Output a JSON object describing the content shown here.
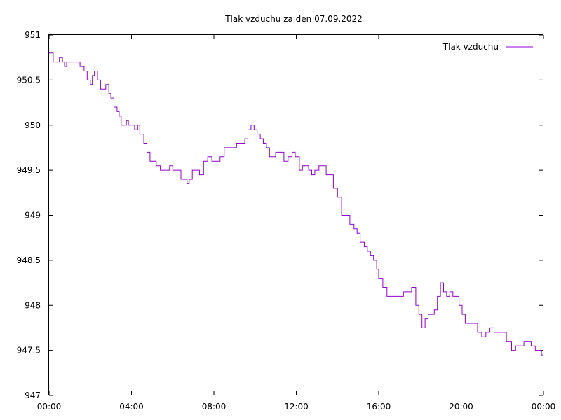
{
  "chart_data": {
    "type": "line",
    "title": "Tlak vzduchu za den 07.09.2022",
    "xlabel": "",
    "ylabel": "",
    "xlim": [
      0,
      24
    ],
    "ylim": [
      947,
      951
    ],
    "x_ticks": [
      "00:00",
      "04:00",
      "08:00",
      "12:00",
      "16:00",
      "20:00",
      "00:00"
    ],
    "y_ticks": [
      "947",
      "947.5",
      "948",
      "948.5",
      "949",
      "949.5",
      "950",
      "950.5",
      "951"
    ],
    "grid": false,
    "legend_position": "top-right",
    "series": [
      {
        "name": "Tlak vzduchu",
        "color": "#9400d3",
        "x": [
          0.0,
          0.1,
          0.2,
          0.35,
          0.5,
          0.65,
          0.75,
          0.85,
          1.0,
          1.2,
          1.5,
          1.7,
          1.85,
          2.0,
          2.1,
          2.2,
          2.35,
          2.5,
          2.6,
          2.75,
          2.9,
          3.0,
          3.15,
          3.3,
          3.4,
          3.5,
          3.65,
          3.75,
          3.85,
          4.0,
          4.15,
          4.3,
          4.4,
          4.6,
          4.75,
          4.9,
          5.05,
          5.2,
          5.4,
          5.55,
          5.7,
          5.85,
          6.0,
          6.2,
          6.4,
          6.55,
          6.7,
          6.8,
          6.95,
          7.1,
          7.3,
          7.5,
          7.7,
          7.9,
          8.1,
          8.3,
          8.5,
          8.7,
          8.9,
          9.1,
          9.3,
          9.5,
          9.65,
          9.8,
          9.95,
          10.1,
          10.25,
          10.4,
          10.55,
          10.7,
          10.85,
          11.0,
          11.2,
          11.4,
          11.6,
          11.8,
          11.95,
          12.15,
          12.3,
          12.45,
          12.6,
          12.75,
          12.9,
          13.1,
          13.3,
          13.45,
          13.6,
          13.8,
          14.0,
          14.2,
          14.4,
          14.6,
          14.8,
          14.95,
          15.1,
          15.3,
          15.45,
          15.6,
          15.75,
          15.9,
          16.0,
          16.2,
          16.4,
          16.5,
          16.6,
          16.8,
          17.0,
          17.2,
          17.4,
          17.6,
          17.8,
          17.95,
          18.1,
          18.25,
          18.4,
          18.55,
          18.7,
          18.85,
          19.0,
          19.15,
          19.3,
          19.45,
          19.6,
          19.75,
          19.9,
          20.05,
          20.2,
          20.4,
          20.6,
          20.8,
          21.0,
          21.2,
          21.4,
          21.6,
          21.8,
          22.0,
          22.2,
          22.45,
          22.65,
          22.85,
          23.05,
          23.2,
          23.4,
          23.6,
          23.75,
          23.9
        ],
        "values": [
          950.8,
          950.8,
          950.7,
          950.7,
          950.75,
          950.7,
          950.65,
          950.7,
          950.7,
          950.7,
          950.65,
          950.6,
          950.5,
          950.45,
          950.55,
          950.6,
          950.5,
          950.4,
          950.4,
          950.45,
          950.35,
          950.3,
          950.2,
          950.15,
          950.1,
          950.0,
          950.0,
          950.05,
          950.0,
          950.0,
          949.95,
          950.0,
          949.9,
          949.8,
          949.7,
          949.6,
          949.6,
          949.55,
          949.5,
          949.5,
          949.5,
          949.55,
          949.5,
          949.5,
          949.4,
          949.4,
          949.35,
          949.4,
          949.5,
          949.5,
          949.45,
          949.6,
          949.65,
          949.6,
          949.6,
          949.65,
          949.75,
          949.75,
          949.75,
          949.8,
          949.8,
          949.85,
          949.95,
          950.0,
          949.95,
          949.9,
          949.85,
          949.8,
          949.75,
          949.65,
          949.65,
          949.7,
          949.7,
          949.6,
          949.65,
          949.7,
          949.65,
          949.5,
          949.55,
          949.55,
          949.5,
          949.45,
          949.5,
          949.55,
          949.55,
          949.45,
          949.45,
          949.3,
          949.2,
          949.0,
          949.0,
          948.9,
          948.85,
          948.8,
          948.7,
          948.65,
          948.6,
          948.55,
          948.5,
          948.4,
          948.3,
          948.2,
          948.1,
          948.1,
          948.1,
          948.1,
          948.1,
          948.15,
          948.15,
          948.2,
          948.0,
          947.9,
          947.75,
          947.85,
          947.9,
          947.9,
          947.95,
          948.1,
          948.25,
          948.15,
          948.1,
          948.15,
          948.1,
          948.1,
          948.0,
          947.9,
          947.8,
          947.8,
          947.8,
          947.7,
          947.65,
          947.7,
          947.75,
          947.7,
          947.7,
          947.7,
          947.6,
          947.5,
          947.55,
          947.55,
          947.6,
          947.6,
          947.55,
          947.5,
          947.5,
          947.45
        ]
      }
    ]
  }
}
